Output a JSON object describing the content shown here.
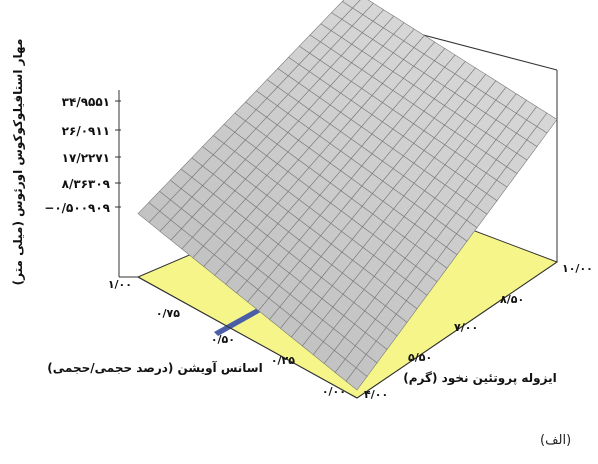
{
  "caption": "(الف)",
  "chart_data": {
    "type": "surface",
    "title": "",
    "zlabel": "مهار استافیلوکوکوس اورئوس (میلی متر)",
    "xlabel": "اسانس آویشن (درصد حجمی/حجمی)",
    "ylabel": "ایزوله پروتئین نخود (گرم)",
    "x_ticks": [
      "۱/۰۰",
      "۰/۷۵",
      "۰/۵۰",
      "۰/۲۵",
      "۰/۰۰"
    ],
    "y_ticks": [
      "۱۰/۰۰",
      "۸/۵۰",
      "۷/۰۰",
      "۵/۵۰",
      "۴/۰۰"
    ],
    "z_ticks": [
      "۳۴/۹۵۵۱",
      "۲۶/۰۹۱۱",
      "۱۷/۲۲۷۱",
      "۸/۳۶۳۰۹",
      "−۰/۵۰۰۹۰۹"
    ],
    "x": [
      0.0,
      1.0
    ],
    "y": [
      4.0,
      10.0
    ],
    "zlim": [
      -0.500909,
      34.9551
    ],
    "z_corners": {
      "x0_y4": -0.5,
      "x1_y4": 10.0,
      "x0_y10": 25.0,
      "x1_y10": 34.9
    },
    "surface_color": "#c9c9c9",
    "floor_color": "#f5f58a",
    "contour_color": "#4a5ea8",
    "grid": true
  }
}
